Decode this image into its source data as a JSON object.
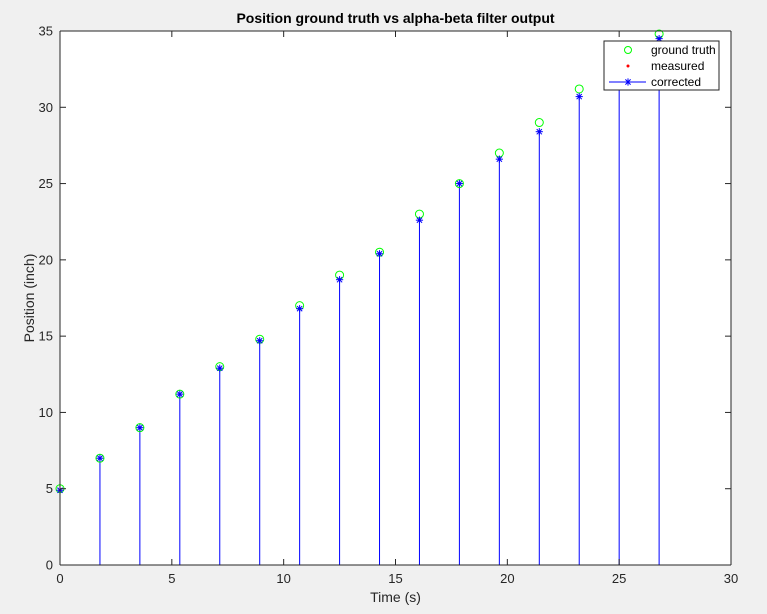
{
  "colors": {
    "ground_truth": "#00ff00",
    "measured": "#ff0000",
    "corrected": "#0000ff",
    "axes": "#262626",
    "background": "#f0f0f0",
    "plot_area": "#ffffff"
  },
  "chart_data": {
    "type": "scatter",
    "title": "Position ground truth vs alpha-beta filter output",
    "xlabel": "Time (s)",
    "ylabel": "Position (inch)",
    "xlim": [
      0,
      30
    ],
    "ylim": [
      0,
      35
    ],
    "xticks": [
      "0",
      "5",
      "10",
      "15",
      "20",
      "25",
      "30"
    ],
    "yticks": [
      "0",
      "5",
      "10",
      "15",
      "20",
      "25",
      "30",
      "35"
    ],
    "grid": false,
    "legend_position": "top-right",
    "x": [
      0,
      1.786,
      3.571,
      5.357,
      7.143,
      8.929,
      10.714,
      12.5,
      14.286,
      16.071,
      17.857,
      19.643,
      21.429,
      23.214,
      25,
      26.786
    ],
    "series": [
      {
        "name": "ground truth",
        "marker": "circle",
        "values": [
          5,
          7,
          9,
          11.2,
          13,
          14.8,
          17,
          19,
          20.5,
          23,
          25,
          27,
          29,
          31.2,
          33,
          34.8
        ]
      },
      {
        "name": "measured",
        "marker": "dot",
        "values": [
          4.9,
          7,
          9,
          11.2,
          12.9,
          14.7,
          16.8,
          18.7,
          20.4,
          22.6,
          25,
          26.6,
          28.4,
          30.7,
          32.5,
          34.5
        ]
      },
      {
        "name": "corrected",
        "marker": "asterisk-stem",
        "values": [
          4.9,
          7,
          9,
          11.2,
          12.9,
          14.7,
          16.8,
          18.7,
          20.4,
          22.6,
          25,
          26.6,
          28.4,
          30.7,
          32.5,
          34.5
        ]
      }
    ]
  }
}
